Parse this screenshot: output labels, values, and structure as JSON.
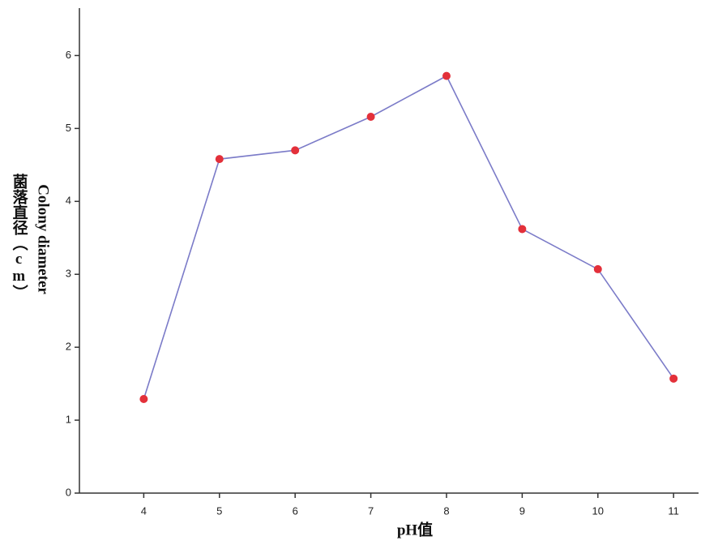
{
  "chart_data": {
    "type": "line",
    "xlabel": "pH值",
    "ylabel": [
      "Colony diameter",
      "菌落直径（cm）"
    ],
    "x": [
      4,
      5,
      6,
      7,
      8,
      9,
      10,
      11
    ],
    "series": [
      {
        "name": "Colony diameter",
        "color": "#7b7bc8",
        "marker_color": "#e3303a",
        "values": [
          1.29,
          4.58,
          4.7,
          5.16,
          5.72,
          3.62,
          3.07,
          1.57
        ]
      }
    ],
    "xlim": [
      3.15,
      11.33
    ],
    "xticks": [
      4,
      5,
      6,
      7,
      8,
      9,
      10,
      11
    ],
    "ylim": [
      0,
      6.65
    ],
    "yticks": [
      0,
      1,
      2,
      3,
      4,
      5,
      6
    ],
    "grid": false
  }
}
